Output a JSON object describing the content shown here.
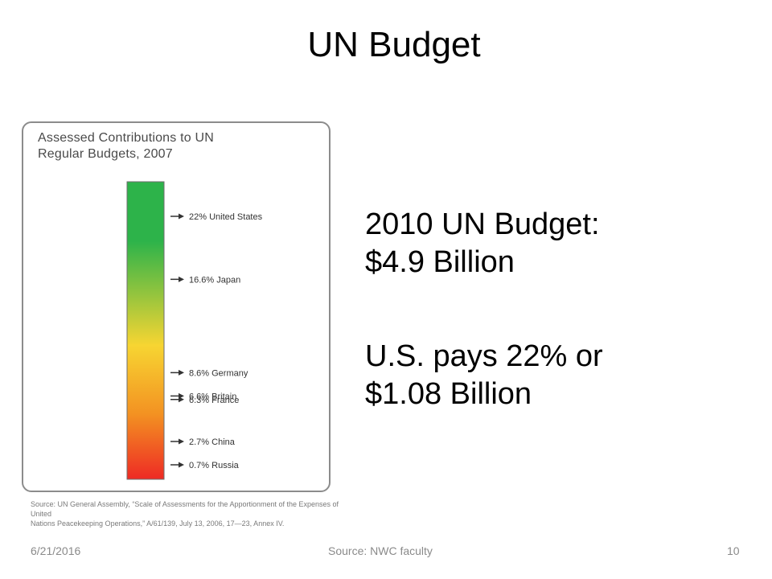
{
  "slide": {
    "title": "UN Budget",
    "budget_line1": "2010 UN Budget:",
    "budget_line2": "$4.9 Billion",
    "us_line1": "U.S. pays 22% or",
    "us_line2": "$1.08 Billion",
    "footer_date": "6/21/2016",
    "footer_source": "Source: NWC faculty",
    "footer_page": "10"
  },
  "chart_data": {
    "type": "bar",
    "title_line1": "Assessed Contributions to UN",
    "title_line2": "Regular Budgets, 2007",
    "source_line1": "Source: UN General Assembly, “Scale of Assessments for the Apportionment of the Expenses of United",
    "source_line2": "Nations Peacekeeping Operations,” A/61/139, July 13, 2006, 17—23, Annex IV.",
    "ylim": [
      0,
      25
    ],
    "gradient_colors": [
      "#2db34a",
      "#f7d532",
      "#f39222",
      "#ee2a24"
    ],
    "marker_labels": [
      {
        "label": "22% United States",
        "value": 22
      },
      {
        "label": "16.6% Japan",
        "value": 16.6
      },
      {
        "label": "8.6% Germany",
        "value": 8.6
      },
      {
        "label": "6.6% Britain",
        "value": 6.6
      },
      {
        "label": "6.3% France",
        "value": 6.3
      },
      {
        "label": "2.7% China",
        "value": 2.7
      },
      {
        "label": "0.7% Russia",
        "value": 0.7
      }
    ]
  }
}
